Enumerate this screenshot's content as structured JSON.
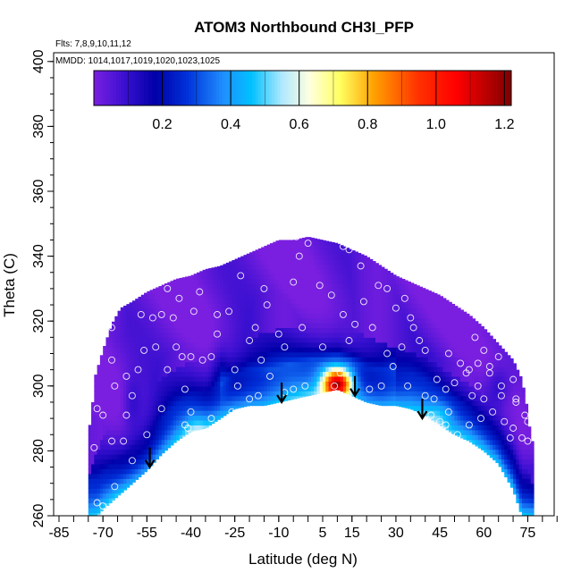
{
  "chart_data": {
    "type": "heatmap",
    "title": "ATOM3 Northbound CH3I_PFP",
    "flights_note": "Flts: 7,8,9,10,11,12",
    "mmdd_note": "MMDD: 1014,1017,1019,1020,1023,1025",
    "xlabel": "Latitude (deg N)",
    "ylabel": "Theta (C)",
    "xlim": [
      -85,
      85
    ],
    "ylim": [
      260,
      400
    ],
    "x_ticks": [
      -85,
      -70,
      -55,
      -40,
      -25,
      -10,
      5,
      15,
      30,
      45,
      60,
      75
    ],
    "x_tick_labels": [
      "-85",
      "-70",
      "-55",
      "-40",
      "-25",
      "-10",
      "5",
      "15",
      "30",
      "45",
      "60",
      "75"
    ],
    "y_ticks": [
      260,
      280,
      300,
      320,
      340,
      360,
      380,
      400
    ],
    "y_tick_labels": [
      "260",
      "280",
      "300",
      "320",
      "340",
      "360",
      "380",
      "400"
    ],
    "colorbar": {
      "min": 0.0,
      "max": 1.22,
      "ticks": [
        0.2,
        0.4,
        0.6,
        0.8,
        1.0,
        1.2
      ],
      "tick_labels": [
        "0.2",
        "0.4",
        "0.6",
        "0.8",
        "1.0",
        "1.2"
      ],
      "stops": [
        {
          "v": 0.0,
          "c": "#7a1fe0"
        },
        {
          "v": 0.09,
          "c": "#3a10d0"
        },
        {
          "v": 0.18,
          "c": "#0000a8"
        },
        {
          "v": 0.27,
          "c": "#0030d8"
        },
        {
          "v": 0.38,
          "c": "#2090ff"
        },
        {
          "v": 0.46,
          "c": "#00c0ff"
        },
        {
          "v": 0.55,
          "c": "#b0e8ff"
        },
        {
          "v": 0.63,
          "c": "#ffffe0"
        },
        {
          "v": 0.72,
          "c": "#ffff60"
        },
        {
          "v": 0.82,
          "c": "#ffa000"
        },
        {
          "v": 0.95,
          "c": "#ff3000"
        },
        {
          "v": 1.06,
          "c": "#ff0000"
        },
        {
          "v": 1.22,
          "c": "#800000"
        }
      ]
    },
    "tropopause_boundary": [
      [
        -72,
        260
      ],
      [
        -70,
        262
      ],
      [
        -65,
        266
      ],
      [
        -60,
        270
      ],
      [
        -55,
        274
      ],
      [
        -50,
        279
      ],
      [
        -45,
        283
      ],
      [
        -40,
        286
      ],
      [
        -35,
        287
      ],
      [
        -30,
        290
      ],
      [
        -25,
        293
      ],
      [
        -20,
        294
      ],
      [
        -15,
        294
      ],
      [
        -10,
        295
      ],
      [
        -5,
        296
      ],
      [
        0,
        297
      ],
      [
        5,
        298
      ],
      [
        10,
        299
      ],
      [
        15,
        297
      ],
      [
        20,
        295
      ],
      [
        25,
        294
      ],
      [
        30,
        294
      ],
      [
        35,
        293
      ],
      [
        40,
        291
      ],
      [
        45,
        288
      ],
      [
        50,
        285
      ],
      [
        55,
        283
      ],
      [
        60,
        280
      ],
      [
        65,
        276
      ],
      [
        70,
        268
      ],
      [
        73,
        260
      ]
    ],
    "top_boundary": [
      [
        -74,
        288
      ],
      [
        -73,
        302
      ],
      [
        -70,
        311
      ],
      [
        -67,
        319
      ],
      [
        -64,
        324
      ],
      [
        -60,
        326
      ],
      [
        -55,
        329
      ],
      [
        -50,
        331
      ],
      [
        -45,
        333
      ],
      [
        -40,
        334
      ],
      [
        -35,
        336
      ],
      [
        -30,
        337
      ],
      [
        -25,
        339
      ],
      [
        -20,
        341
      ],
      [
        -15,
        343
      ],
      [
        -10,
        345
      ],
      [
        -5,
        345
      ],
      [
        0,
        346
      ],
      [
        5,
        345
      ],
      [
        10,
        344
      ],
      [
        15,
        342
      ],
      [
        20,
        340
      ],
      [
        25,
        337
      ],
      [
        30,
        334
      ],
      [
        35,
        332
      ],
      [
        40,
        330
      ],
      [
        45,
        328
      ],
      [
        50,
        325
      ],
      [
        55,
        322
      ],
      [
        60,
        318
      ],
      [
        65,
        313
      ],
      [
        70,
        308
      ],
      [
        73,
        302
      ],
      [
        75,
        292
      ],
      [
        76,
        283
      ]
    ],
    "anomalies": [
      {
        "lat": 10,
        "theta": 301,
        "value": 1.1,
        "sx": 5,
        "sy": 4
      },
      {
        "lat": 10,
        "theta": 306,
        "value": 0.45,
        "sx": 7,
        "sy": 3
      },
      {
        "lat": -38,
        "theta": 286,
        "value": 0.38,
        "sx": 4,
        "sy": 6
      },
      {
        "lat": -45,
        "theta": 292,
        "value": 0.28,
        "sx": 5,
        "sy": 6
      },
      {
        "lat": -30,
        "theta": 304,
        "value": 0.1,
        "sx": 3,
        "sy": 8
      },
      {
        "lat": -60,
        "theta": 295,
        "value": 0.15,
        "sx": 3,
        "sy": 8
      },
      {
        "lat": 45,
        "theta": 292,
        "value": 0.1,
        "sx": 5,
        "sy": 4
      },
      {
        "lat": 65,
        "theta": 300,
        "value": 0.12,
        "sx": 4,
        "sy": 6
      }
    ],
    "arrows": [
      {
        "lat": -54,
        "theta": 275
      },
      {
        "lat": -9,
        "theta": 295
      },
      {
        "lat": 16,
        "theta": 297
      },
      {
        "lat": 39,
        "theta": 290
      }
    ],
    "sample_points": [
      [
        -72,
        264
      ],
      [
        -70,
        263
      ],
      [
        -66,
        269
      ],
      [
        -73,
        281
      ],
      [
        -72,
        293
      ],
      [
        -73,
        307
      ],
      [
        -70,
        291
      ],
      [
        -67,
        283
      ],
      [
        -63,
        283
      ],
      [
        -60,
        277
      ],
      [
        -66,
        300
      ],
      [
        -67,
        308
      ],
      [
        -68,
        325
      ],
      [
        -67,
        318
      ],
      [
        -57,
        322
      ],
      [
        -53,
        321
      ],
      [
        -52,
        312
      ],
      [
        -48,
        305
      ],
      [
        -43,
        309
      ],
      [
        -40,
        309
      ],
      [
        -36,
        308
      ],
      [
        -33,
        309
      ],
      [
        -31,
        322
      ],
      [
        -37,
        329
      ],
      [
        -39,
        323
      ],
      [
        -44,
        327
      ],
      [
        -46,
        321
      ],
      [
        -48,
        330
      ],
      [
        -50,
        322
      ],
      [
        -27,
        323
      ],
      [
        -23,
        334
      ],
      [
        -20,
        314
      ],
      [
        -24,
        300
      ],
      [
        -26,
        292
      ],
      [
        -20,
        296
      ],
      [
        -14,
        325
      ],
      [
        -10,
        316
      ],
      [
        -8,
        312
      ],
      [
        -5,
        299
      ],
      [
        -5,
        332
      ],
      [
        -3,
        340
      ],
      [
        0,
        344
      ],
      [
        -4,
        346
      ],
      [
        4,
        331
      ],
      [
        8,
        328
      ],
      [
        12,
        343
      ],
      [
        14,
        342
      ],
      [
        12,
        322
      ],
      [
        11,
        304
      ],
      [
        9,
        300
      ],
      [
        18,
        337
      ],
      [
        21,
        342
      ],
      [
        24,
        331
      ],
      [
        19,
        326
      ],
      [
        22,
        318
      ],
      [
        27,
        310
      ],
      [
        29,
        306
      ],
      [
        25,
        300
      ],
      [
        21,
        299
      ],
      [
        33,
        327
      ],
      [
        35,
        321
      ],
      [
        38,
        314
      ],
      [
        34,
        300
      ],
      [
        40,
        297
      ],
      [
        43,
        296
      ],
      [
        45,
        289
      ],
      [
        42,
        291
      ],
      [
        50,
        301
      ],
      [
        54,
        304
      ],
      [
        58,
        307
      ],
      [
        58,
        300
      ],
      [
        60,
        296
      ],
      [
        62,
        304
      ],
      [
        65,
        309
      ],
      [
        66,
        300
      ],
      [
        66,
        297
      ],
      [
        70,
        302
      ],
      [
        72,
        310
      ],
      [
        71,
        295
      ],
      [
        69,
        284
      ],
      [
        73,
        284
      ],
      [
        75,
        283
      ],
      [
        75,
        289
      ],
      [
        71,
        296
      ],
      [
        63,
        292
      ],
      [
        63,
        276
      ],
      [
        58,
        280
      ],
      [
        55,
        288
      ],
      [
        51,
        285
      ],
      [
        48,
        292
      ],
      [
        52,
        283
      ],
      [
        47,
        288
      ],
      [
        55,
        305
      ],
      [
        60,
        311
      ],
      [
        62,
        306
      ],
      [
        57,
        315
      ],
      [
        52,
        307
      ],
      [
        48,
        310
      ],
      [
        40,
        311
      ],
      [
        36,
        318
      ],
      [
        30,
        324
      ],
      [
        27,
        330
      ],
      [
        18,
        348
      ],
      [
        5,
        312
      ],
      [
        -1,
        300
      ],
      [
        -2,
        318
      ],
      [
        -15,
        330
      ],
      [
        -18,
        318
      ],
      [
        -41,
        287
      ],
      [
        -40,
        292
      ],
      [
        -42,
        288
      ],
      [
        -33,
        290
      ],
      [
        -42,
        299
      ],
      [
        -45,
        312
      ],
      [
        -56,
        311
      ],
      [
        -60,
        297
      ],
      [
        -62,
        303
      ],
      [
        -58,
        305
      ],
      [
        -62,
        291
      ],
      [
        -55,
        285
      ],
      [
        -50,
        293
      ],
      [
        -31,
        316
      ],
      [
        -25,
        305
      ],
      [
        -16,
        308
      ],
      [
        -13,
        303
      ],
      [
        -8,
        298
      ],
      [
        14,
        314
      ],
      [
        16,
        319
      ],
      [
        32,
        312
      ],
      [
        44,
        302
      ],
      [
        47,
        299
      ],
      [
        56,
        297
      ],
      [
        67,
        289
      ],
      [
        70,
        287
      ],
      [
        74,
        291
      ],
      [
        59,
        290
      ],
      [
        -17,
        297
      ]
    ]
  }
}
